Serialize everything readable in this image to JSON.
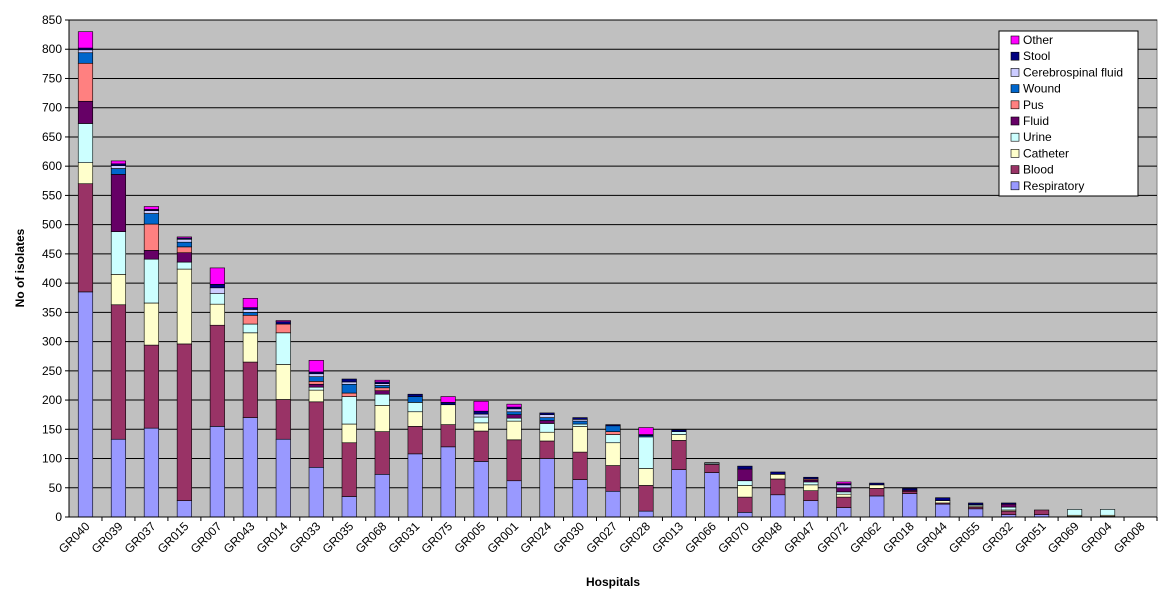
{
  "chart_data": {
    "type": "bar",
    "stacked": true,
    "title": "",
    "xlabel": "Hospitals",
    "ylabel": "No of isolates",
    "ylim": [
      0,
      850
    ],
    "ytick_step": 50,
    "grid": true,
    "legend_position": "top-right",
    "plot_background": "#c0c0c0",
    "categories": [
      "GR040",
      "GR039",
      "GR037",
      "GR015",
      "GR007",
      "GR043",
      "GR014",
      "GR033",
      "GR035",
      "GR068",
      "GR031",
      "GR075",
      "GR005",
      "GR001",
      "GR024",
      "GR030",
      "GR027",
      "GR028",
      "GR013",
      "GR066",
      "GR070",
      "GR048",
      "GR047",
      "GR072",
      "GR062",
      "GR018",
      "GR044",
      "GR055",
      "GR032",
      "GR051",
      "GR069",
      "GR004",
      "GR008"
    ],
    "series": [
      {
        "name": "Respiratory",
        "color": "#9999ff",
        "values": [
          385,
          133,
          152,
          28,
          155,
          170,
          133,
          85,
          35,
          73,
          108,
          120,
          95,
          62,
          100,
          64,
          44,
          10,
          81,
          76,
          8,
          38,
          28,
          16,
          36,
          40,
          22,
          14,
          4,
          4,
          1,
          1,
          0
        ]
      },
      {
        "name": "Blood",
        "color": "#993366",
        "values": [
          185,
          230,
          142,
          268,
          173,
          95,
          68,
          112,
          92,
          73,
          47,
          38,
          52,
          70,
          30,
          47,
          44,
          44,
          50,
          14,
          26,
          27,
          17,
          18,
          13,
          4,
          2,
          3,
          6,
          8,
          0,
          0,
          0
        ]
      },
      {
        "name": "Catheter",
        "color": "#ffffcc",
        "values": [
          36,
          52,
          72,
          128,
          36,
          50,
          60,
          20,
          32,
          45,
          25,
          34,
          14,
          32,
          15,
          44,
          39,
          29,
          10,
          0,
          20,
          8,
          10,
          5,
          6,
          0,
          4,
          2,
          2,
          0,
          2,
          2,
          0
        ]
      },
      {
        "name": "Urine",
        "color": "#ccffff",
        "values": [
          67,
          73,
          75,
          12,
          18,
          15,
          54,
          5,
          47,
          19,
          16,
          0,
          10,
          5,
          15,
          4,
          14,
          54,
          5,
          2,
          8,
          0,
          5,
          4,
          0,
          0,
          0,
          2,
          5,
          0,
          10,
          10,
          0
        ]
      },
      {
        "name": "Fluid",
        "color": "#660066",
        "values": [
          38,
          98,
          15,
          16,
          0,
          0,
          0,
          5,
          0,
          6,
          0,
          0,
          0,
          6,
          5,
          0,
          0,
          0,
          0,
          0,
          20,
          0,
          3,
          7,
          0,
          2,
          0,
          0,
          5,
          0,
          0,
          0,
          0
        ]
      },
      {
        "name": "Pus",
        "color": "#ff8080",
        "values": [
          65,
          0,
          45,
          10,
          0,
          15,
          15,
          5,
          6,
          5,
          0,
          0,
          0,
          0,
          0,
          0,
          5,
          0,
          0,
          0,
          0,
          0,
          2,
          0,
          0,
          0,
          0,
          0,
          0,
          0,
          0,
          0,
          0
        ]
      },
      {
        "name": "Wound",
        "color": "#0066cc",
        "values": [
          18,
          10,
          18,
          8,
          0,
          5,
          0,
          8,
          15,
          4,
          10,
          0,
          0,
          5,
          5,
          5,
          10,
          2,
          0,
          0,
          0,
          0,
          0,
          0,
          0,
          0,
          0,
          0,
          0,
          0,
          0,
          0,
          0
        ]
      },
      {
        "name": "Cerebrospinal fluid",
        "color": "#ccccff",
        "values": [
          5,
          5,
          5,
          5,
          10,
          5,
          0,
          5,
          4,
          3,
          0,
          0,
          5,
          5,
          5,
          3,
          0,
          0,
          0,
          0,
          0,
          0,
          0,
          5,
          0,
          0,
          0,
          0,
          0,
          0,
          0,
          0,
          0
        ]
      },
      {
        "name": "Stool",
        "color": "#000080",
        "values": [
          3,
          3,
          2,
          2,
          6,
          3,
          4,
          3,
          5,
          3,
          4,
          4,
          5,
          3,
          3,
          3,
          2,
          2,
          3,
          1,
          5,
          4,
          3,
          2,
          3,
          3,
          5,
          3,
          2,
          0,
          0,
          0,
          0
        ]
      },
      {
        "name": "Other",
        "color": "#ff00ff",
        "values": [
          28,
          5,
          5,
          2,
          28,
          16,
          2,
          20,
          0,
          3,
          0,
          10,
          17,
          5,
          0,
          0,
          0,
          12,
          0,
          0,
          0,
          0,
          0,
          3,
          0,
          0,
          0,
          0,
          0,
          0,
          0,
          0,
          0
        ]
      }
    ],
    "legend_order": [
      "Other",
      "Stool",
      "Cerebrospinal fluid",
      "Wound",
      "Pus",
      "Fluid",
      "Urine",
      "Catheter",
      "Blood",
      "Respiratory"
    ]
  }
}
